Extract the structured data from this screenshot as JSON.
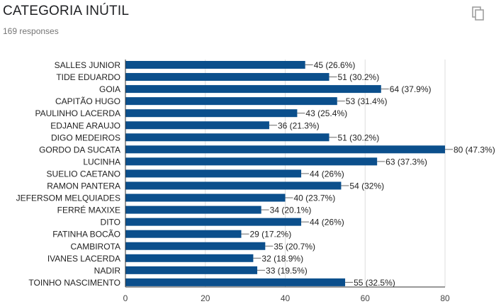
{
  "header": {
    "title": "CATEGORIA INÚTIL",
    "responses": "169 responses"
  },
  "icons": {
    "copy": "copy-icon"
  },
  "colors": {
    "bar": "#0b4f8c",
    "leader": "#666666",
    "axis": "#333333",
    "grid": "#dddddd"
  },
  "chart_data": {
    "type": "bar",
    "orientation": "horizontal",
    "categories": [
      "SALLES JUNIOR",
      "TIDE EDUARDO",
      "GOIA",
      "CAPITÃO HUGO",
      "PAULINHO LACERDA",
      "EDJANE ARAUJO",
      "DIGO MEDEIROS",
      "GORDO DA SUCATA",
      "LUCINHA",
      "SUELIO CAETANO",
      "RAMON PANTERA",
      "JEFERSOM MELQUIADES",
      "FERRÉ MAXIXE",
      "DITO",
      "FATINHA BOCÃO",
      "CAMBIROTA",
      "IVANES LACERDA",
      "NADIR",
      "TOINHO NASCIMENTO"
    ],
    "values": [
      45,
      51,
      64,
      53,
      43,
      36,
      51,
      80,
      63,
      44,
      54,
      40,
      34,
      44,
      29,
      35,
      32,
      33,
      55
    ],
    "data_labels": [
      "45 (26.6%)",
      "51 (30.2%)",
      "64 (37.9%)",
      "53 (31.4%)",
      "43 (25.4%)",
      "36 (21.3%)",
      "51 (30.2%)",
      "80 (47.3%)",
      "63 (37.3%)",
      "44 (26%)",
      "54 (32%)",
      "40 (23.7%)",
      "34 (20.1%)",
      "44 (26%)",
      "29 (17.2%)",
      "35 (20.7%)",
      "32 (18.9%)",
      "33 (19.5%)",
      "55 (32.5%)"
    ],
    "xlim": [
      0,
      80
    ],
    "xticks": [
      "0",
      "20",
      "40",
      "60",
      "80"
    ],
    "grid": true
  }
}
